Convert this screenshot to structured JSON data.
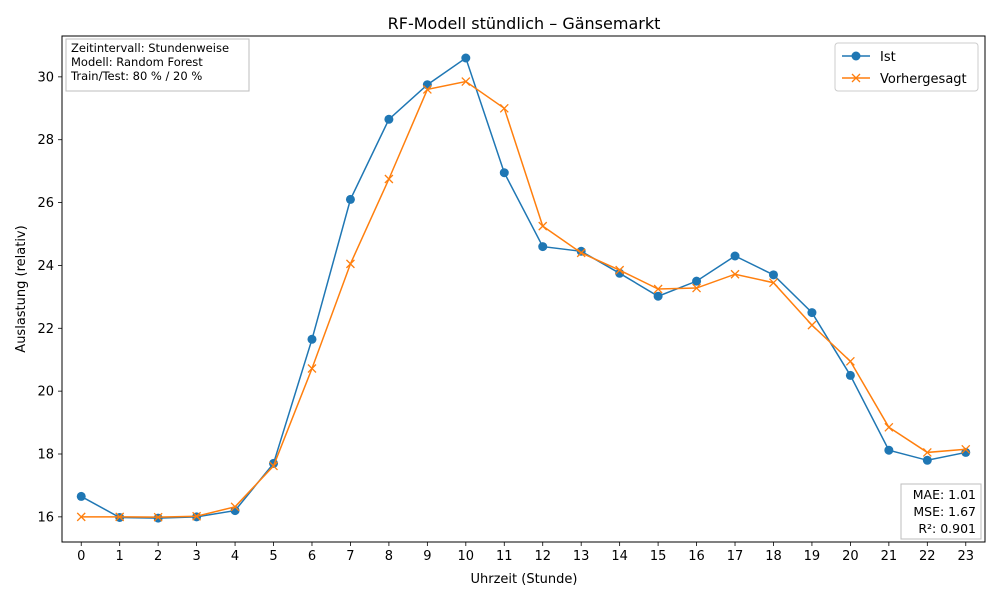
{
  "chart_data": {
    "type": "line",
    "title": "RF-Modell stündlich – Gänsemarkt",
    "xlabel": "Uhrzeit (Stunde)",
    "ylabel": "Auslastung (relativ)",
    "x": [
      0,
      1,
      2,
      3,
      4,
      5,
      6,
      7,
      8,
      9,
      10,
      11,
      12,
      13,
      14,
      15,
      16,
      17,
      18,
      19,
      20,
      21,
      22,
      23
    ],
    "xlim": [
      -0.5,
      23.5
    ],
    "ylim": [
      15.2,
      31.3
    ],
    "yticks": [
      16,
      18,
      20,
      22,
      24,
      26,
      28,
      30
    ],
    "grid": false,
    "legend_position": "top-right",
    "series": [
      {
        "name": "Ist",
        "color": "#1f77b4",
        "marker": "circle",
        "values": [
          16.65,
          15.98,
          15.96,
          16.0,
          16.2,
          17.7,
          21.65,
          26.1,
          28.65,
          29.75,
          30.6,
          26.95,
          24.6,
          24.45,
          23.75,
          23.02,
          23.5,
          24.3,
          23.7,
          22.5,
          20.5,
          18.12,
          17.8,
          18.05
        ]
      },
      {
        "name": "Vorhergesagt",
        "color": "#ff7f0e",
        "marker": "x",
        "values": [
          16.0,
          16.0,
          15.99,
          16.02,
          16.32,
          17.62,
          20.72,
          24.05,
          26.75,
          29.6,
          29.85,
          29.0,
          25.25,
          24.4,
          23.85,
          23.25,
          23.28,
          23.72,
          23.45,
          22.1,
          20.95,
          18.85,
          18.05,
          18.15
        ]
      }
    ],
    "annotations": {
      "info_lines": [
        "Zeitintervall: Stundenweise",
        "Modell: Random Forest",
        "Train/Test: 80 % / 20 %"
      ],
      "metrics_lines": [
        "MAE: 1.01",
        "MSE: 1.67",
        "R²: 0.901"
      ]
    }
  }
}
